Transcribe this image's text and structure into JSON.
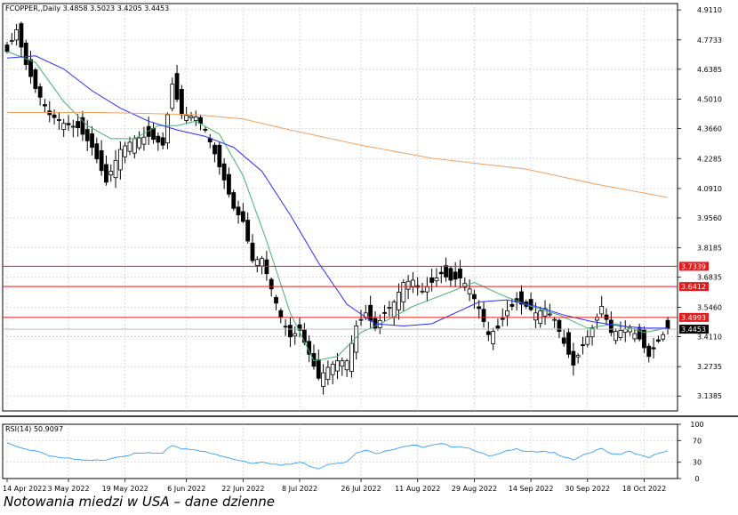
{
  "caption": "Notowania miedzi w USA – dane dzienne",
  "chart_data": {
    "type": "candlestick",
    "title": "FCOPPER,,Daily  3.4858 3.5023 3.4205 3.4453",
    "symbol": "FCOPPER",
    "timeframe": "Daily",
    "last_bar": {
      "open": 3.4858,
      "high": 3.5023,
      "low": 3.4205,
      "close": 3.4453
    },
    "ylim": [
      3.07,
      4.94
    ],
    "y_ticks": [
      "4.9110",
      "4.7733",
      "4.6385",
      "4.5010",
      "4.3660",
      "4.2285",
      "4.0910",
      "3.9560",
      "3.8185",
      "3.6835",
      "3.5460",
      "3.4110",
      "3.2735",
      "3.1385"
    ],
    "x_ticks": [
      "14 Apr 2022",
      "3 May 2022",
      "19 May 2022",
      "6 Jun 2022",
      "22 Jun 2022",
      "8 Jul 2022",
      "26 Jul 2022",
      "11 Aug 2022",
      "29 Aug 2022",
      "14 Sep 2022",
      "30 Sep 2022",
      "18 Oct 2022"
    ],
    "x_tick_index": [
      0,
      13,
      25,
      38,
      50,
      62,
      75,
      87,
      99,
      111,
      123,
      135
    ],
    "grid": true,
    "horizontal_levels": [
      {
        "value": 3.7339,
        "label": "3.7339",
        "color": "#e31a1c"
      },
      {
        "value": 3.6412,
        "label": "3.6412",
        "color": "#e31a1c"
      },
      {
        "value": 3.4993,
        "label": "3.4993",
        "color": "#e31a1c"
      }
    ],
    "current_price": {
      "value": 3.4453,
      "label": "3.4453"
    },
    "bull_color": "#ffffff",
    "bear_color": "#000000",
    "moving_averages": [
      {
        "period": "fast",
        "color": "#3cb371",
        "anchors": [
          [
            0,
            4.72
          ],
          [
            6,
            4.67
          ],
          [
            12,
            4.49
          ],
          [
            17,
            4.38
          ],
          [
            22,
            4.32
          ],
          [
            27,
            4.32
          ],
          [
            32,
            4.38
          ],
          [
            36,
            4.38
          ],
          [
            40,
            4.4
          ],
          [
            45,
            4.34
          ],
          [
            50,
            4.15
          ],
          [
            55,
            3.85
          ],
          [
            60,
            3.52
          ],
          [
            65,
            3.3
          ],
          [
            70,
            3.32
          ],
          [
            75,
            3.43
          ],
          [
            80,
            3.48
          ],
          [
            86,
            3.55
          ],
          [
            92,
            3.6
          ],
          [
            99,
            3.66
          ],
          [
            105,
            3.6
          ],
          [
            111,
            3.55
          ],
          [
            117,
            3.51
          ],
          [
            123,
            3.45
          ],
          [
            129,
            3.47
          ],
          [
            135,
            3.43
          ],
          [
            140,
            3.45
          ]
        ]
      },
      {
        "period": "slow",
        "color": "#2a2aff",
        "anchors": [
          [
            0,
            4.69
          ],
          [
            6,
            4.7
          ],
          [
            12,
            4.64
          ],
          [
            18,
            4.54
          ],
          [
            24,
            4.46
          ],
          [
            30,
            4.4
          ],
          [
            36,
            4.36
          ],
          [
            42,
            4.33
          ],
          [
            48,
            4.28
          ],
          [
            54,
            4.17
          ],
          [
            60,
            3.97
          ],
          [
            66,
            3.75
          ],
          [
            72,
            3.56
          ],
          [
            78,
            3.47
          ],
          [
            84,
            3.46
          ],
          [
            90,
            3.47
          ],
          [
            96,
            3.53
          ],
          [
            100,
            3.57
          ],
          [
            106,
            3.58
          ],
          [
            112,
            3.55
          ],
          [
            118,
            3.51
          ],
          [
            124,
            3.48
          ],
          [
            130,
            3.46
          ],
          [
            135,
            3.45
          ],
          [
            140,
            3.45
          ]
        ]
      },
      {
        "period": "long",
        "color": "#f0a060",
        "anchors": [
          [
            0,
            4.44
          ],
          [
            20,
            4.44
          ],
          [
            40,
            4.43
          ],
          [
            50,
            4.41
          ],
          [
            60,
            4.36
          ],
          [
            75,
            4.29
          ],
          [
            90,
            4.23
          ],
          [
            110,
            4.18
          ],
          [
            125,
            4.11
          ],
          [
            140,
            4.05
          ]
        ]
      }
    ],
    "price_anchors": [
      [
        0,
        4.72
      ],
      [
        2,
        4.82
      ],
      [
        4,
        4.66
      ],
      [
        6,
        4.55
      ],
      [
        9,
        4.43
      ],
      [
        12,
        4.39
      ],
      [
        15,
        4.37
      ],
      [
        18,
        4.28
      ],
      [
        21,
        4.12
      ],
      [
        24,
        4.27
      ],
      [
        27,
        4.32
      ],
      [
        30,
        4.33
      ],
      [
        33,
        4.29
      ],
      [
        35,
        4.57
      ],
      [
        37,
        4.43
      ],
      [
        40,
        4.42
      ],
      [
        42,
        4.36
      ],
      [
        44,
        4.25
      ],
      [
        46,
        4.13
      ],
      [
        48,
        4.0
      ],
      [
        50,
        3.94
      ],
      [
        52,
        3.76
      ],
      [
        54,
        3.77
      ],
      [
        56,
        3.63
      ],
      [
        58,
        3.5
      ],
      [
        60,
        3.41
      ],
      [
        62,
        3.44
      ],
      [
        64,
        3.33
      ],
      [
        66,
        3.22
      ],
      [
        68,
        3.27
      ],
      [
        70,
        3.3
      ],
      [
        72,
        3.3
      ],
      [
        74,
        3.46
      ],
      [
        76,
        3.52
      ],
      [
        78,
        3.45
      ],
      [
        80,
        3.52
      ],
      [
        82,
        3.57
      ],
      [
        84,
        3.66
      ],
      [
        86,
        3.67
      ],
      [
        88,
        3.62
      ],
      [
        90,
        3.66
      ],
      [
        92,
        3.7
      ],
      [
        94,
        3.67
      ],
      [
        96,
        3.68
      ],
      [
        98,
        3.63
      ],
      [
        100,
        3.54
      ],
      [
        102,
        3.42
      ],
      [
        104,
        3.45
      ],
      [
        106,
        3.53
      ],
      [
        108,
        3.57
      ],
      [
        110,
        3.55
      ],
      [
        112,
        3.52
      ],
      [
        114,
        3.54
      ],
      [
        116,
        3.49
      ],
      [
        118,
        3.38
      ],
      [
        120,
        3.28
      ],
      [
        122,
        3.37
      ],
      [
        124,
        3.45
      ],
      [
        126,
        3.55
      ],
      [
        128,
        3.43
      ],
      [
        130,
        3.44
      ],
      [
        132,
        3.45
      ],
      [
        134,
        3.4
      ],
      [
        136,
        3.32
      ],
      [
        138,
        3.39
      ],
      [
        140,
        3.45
      ]
    ],
    "rsi": {
      "label": "RSI(14) 50.9097",
      "period": 14,
      "value": 50.9097,
      "color": "#1e90ff",
      "ylim": [
        0,
        100
      ],
      "y_ticks": [
        100,
        70,
        30,
        0
      ],
      "levels": [
        70,
        30
      ],
      "anchors": [
        [
          0,
          65
        ],
        [
          3,
          55
        ],
        [
          6,
          52
        ],
        [
          9,
          43
        ],
        [
          12,
          37
        ],
        [
          15,
          34
        ],
        [
          18,
          32
        ],
        [
          21,
          36
        ],
        [
          24,
          42
        ],
        [
          27,
          45
        ],
        [
          30,
          47
        ],
        [
          33,
          45
        ],
        [
          35,
          62
        ],
        [
          37,
          55
        ],
        [
          40,
          54
        ],
        [
          42,
          48
        ],
        [
          44,
          44
        ],
        [
          46,
          40
        ],
        [
          48,
          35
        ],
        [
          50,
          33
        ],
        [
          52,
          28
        ],
        [
          54,
          32
        ],
        [
          56,
          28
        ],
        [
          58,
          24
        ],
        [
          60,
          26
        ],
        [
          62,
          30
        ],
        [
          64,
          24
        ],
        [
          66,
          19
        ],
        [
          68,
          27
        ],
        [
          70,
          30
        ],
        [
          72,
          30
        ],
        [
          74,
          46
        ],
        [
          76,
          52
        ],
        [
          78,
          45
        ],
        [
          80,
          52
        ],
        [
          82,
          55
        ],
        [
          84,
          60
        ],
        [
          86,
          62
        ],
        [
          88,
          57
        ],
        [
          90,
          60
        ],
        [
          92,
          63
        ],
        [
          94,
          60
        ],
        [
          96,
          60
        ],
        [
          98,
          56
        ],
        [
          100,
          50
        ],
        [
          102,
          40
        ],
        [
          104,
          44
        ],
        [
          106,
          50
        ],
        [
          108,
          54
        ],
        [
          110,
          52
        ],
        [
          112,
          50
        ],
        [
          114,
          51
        ],
        [
          116,
          46
        ],
        [
          118,
          38
        ],
        [
          120,
          34
        ],
        [
          122,
          42
        ],
        [
          124,
          50
        ],
        [
          126,
          57
        ],
        [
          128,
          46
        ],
        [
          130,
          46
        ],
        [
          132,
          49
        ],
        [
          134,
          42
        ],
        [
          136,
          38
        ],
        [
          138,
          47
        ],
        [
          140,
          51
        ]
      ]
    }
  }
}
